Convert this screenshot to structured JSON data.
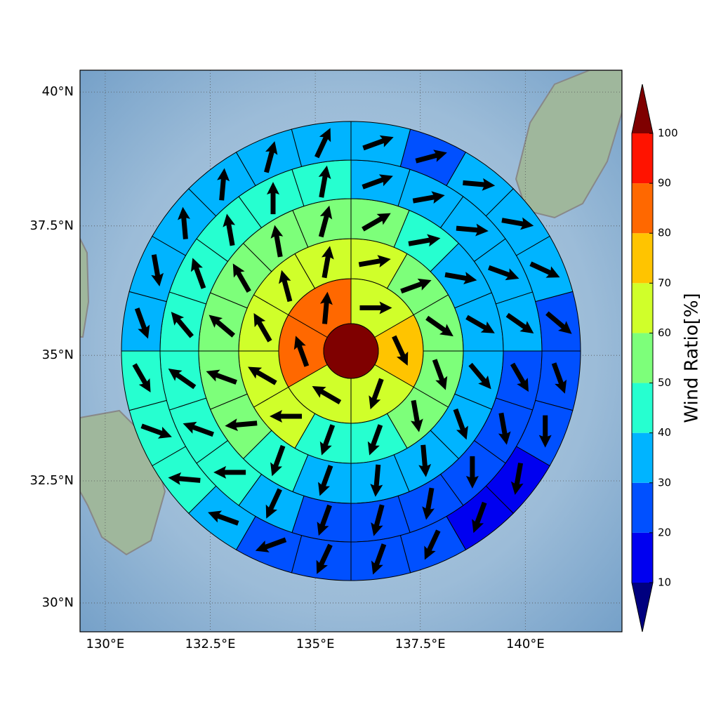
{
  "chart_data": {
    "type": "polar-sector-map",
    "projection": "mercator",
    "xlim": [
      129.4,
      142.3
    ],
    "ylim": [
      29.4,
      40.4
    ],
    "xticks": [
      {
        "value": 130,
        "label": "130°E"
      },
      {
        "value": 132.5,
        "label": "132.5°E"
      },
      {
        "value": 135,
        "label": "135°E"
      },
      {
        "value": 137.5,
        "label": "137.5°E"
      },
      {
        "value": 140,
        "label": "140°E"
      }
    ],
    "yticks": [
      {
        "value": 30,
        "label": "30°N"
      },
      {
        "value": 32.5,
        "label": "32.5°N"
      },
      {
        "value": 35,
        "label": "35°N"
      },
      {
        "value": 37.5,
        "label": "37.5°N"
      },
      {
        "value": 40,
        "label": "40°N"
      }
    ],
    "grid": true,
    "center": {
      "value": 100
    },
    "rings": [
      {
        "values": [
          65,
          75,
          65,
          65,
          85,
          85
        ],
        "directions": [
          90,
          155,
          200,
          300,
          340,
          5
        ]
      },
      {
        "values": [
          65,
          55,
          55,
          55,
          55,
          45,
          45,
          65,
          65,
          65,
          65,
          65
        ],
        "directions": [
          80,
          70,
          125,
          160,
          170,
          200,
          200,
          270,
          300,
          330,
          345,
          10
        ]
      },
      {
        "values": [
          55,
          45,
          35,
          35,
          35,
          35,
          35,
          35,
          35,
          45,
          55,
          55,
          55,
          55,
          55,
          55
        ],
        "directions": [
          60,
          80,
          100,
          120,
          140,
          160,
          175,
          185,
          200,
          200,
          265,
          290,
          310,
          330,
          350,
          15
        ]
      },
      {
        "values": [
          35,
          35,
          35,
          35,
          35,
          25,
          25,
          25,
          25,
          25,
          25,
          35,
          45,
          45,
          45,
          45,
          45,
          45,
          45,
          45
        ],
        "directions": [
          70,
          80,
          95,
          110,
          125,
          150,
          170,
          180,
          190,
          195,
          200,
          205,
          270,
          290,
          305,
          320,
          340,
          350,
          360,
          10
        ]
      },
      {
        "values": [
          35,
          25,
          35,
          35,
          35,
          25,
          25,
          25,
          15,
          15,
          25,
          25,
          25,
          25,
          35,
          45,
          45,
          45,
          35,
          35,
          35,
          35,
          35,
          35
        ],
        "directions": [
          70,
          75,
          95,
          100,
          115,
          130,
          160,
          180,
          190,
          200,
          205,
          200,
          205,
          250,
          290,
          275,
          110,
          150,
          160,
          170,
          355,
          5,
          15,
          25
        ]
      }
    ],
    "colorbar": {
      "label": "Wind Ratio[%]",
      "bounds": [
        10,
        20,
        30,
        40,
        50,
        60,
        70,
        80,
        90,
        100
      ],
      "colors": [
        "#0000f0",
        "#0050ff",
        "#00b4ff",
        "#26ffd0",
        "#7dff7a",
        "#d0ff2a",
        "#ffc400",
        "#ff6800",
        "#ff1300"
      ],
      "under_color": "#00007f",
      "over_color": "#7f0000"
    }
  }
}
